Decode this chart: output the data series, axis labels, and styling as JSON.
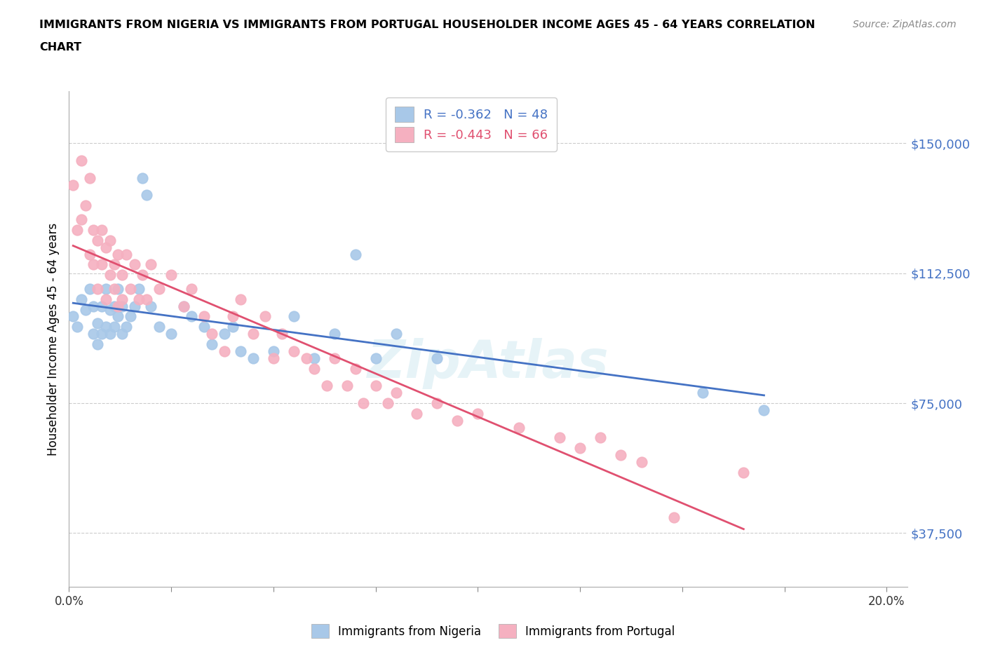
{
  "title_line1": "IMMIGRANTS FROM NIGERIA VS IMMIGRANTS FROM PORTUGAL HOUSEHOLDER INCOME AGES 45 - 64 YEARS CORRELATION",
  "title_line2": "CHART",
  "source": "Source: ZipAtlas.com",
  "ylabel": "Householder Income Ages 45 - 64 years",
  "xlim": [
    0.0,
    0.205
  ],
  "ylim": [
    22000,
    165000
  ],
  "yticks": [
    37500,
    75000,
    112500,
    150000
  ],
  "ytick_labels": [
    "$37,500",
    "$75,000",
    "$112,500",
    "$150,000"
  ],
  "xticks": [
    0.0,
    0.025,
    0.05,
    0.075,
    0.1,
    0.125,
    0.15,
    0.175,
    0.2
  ],
  "xtick_labels": [
    "0.0%",
    "",
    "",
    "",
    "",
    "",
    "",
    "",
    "20.0%"
  ],
  "nigeria_color": "#a8c8e8",
  "portugal_color": "#f5b0c0",
  "nigeria_line_color": "#4472c4",
  "portugal_line_color": "#e05070",
  "nigeria_R": -0.362,
  "nigeria_N": 48,
  "portugal_R": -0.443,
  "portugal_N": 66,
  "nigeria_x": [
    0.001,
    0.002,
    0.003,
    0.004,
    0.005,
    0.006,
    0.006,
    0.007,
    0.007,
    0.008,
    0.008,
    0.009,
    0.009,
    0.01,
    0.01,
    0.011,
    0.011,
    0.012,
    0.012,
    0.013,
    0.013,
    0.014,
    0.015,
    0.016,
    0.017,
    0.018,
    0.019,
    0.02,
    0.022,
    0.025,
    0.028,
    0.03,
    0.033,
    0.035,
    0.038,
    0.04,
    0.042,
    0.045,
    0.05,
    0.055,
    0.06,
    0.065,
    0.07,
    0.075,
    0.08,
    0.09,
    0.155,
    0.17
  ],
  "nigeria_y": [
    100000,
    97000,
    105000,
    102000,
    108000,
    95000,
    103000,
    92000,
    98000,
    95000,
    103000,
    97000,
    108000,
    102000,
    95000,
    103000,
    97000,
    100000,
    108000,
    95000,
    103000,
    97000,
    100000,
    103000,
    108000,
    140000,
    135000,
    103000,
    97000,
    95000,
    103000,
    100000,
    97000,
    92000,
    95000,
    97000,
    90000,
    88000,
    90000,
    100000,
    88000,
    95000,
    118000,
    88000,
    95000,
    88000,
    78000,
    73000
  ],
  "portugal_x": [
    0.001,
    0.002,
    0.003,
    0.003,
    0.004,
    0.005,
    0.005,
    0.006,
    0.006,
    0.007,
    0.007,
    0.008,
    0.008,
    0.009,
    0.009,
    0.01,
    0.01,
    0.011,
    0.011,
    0.012,
    0.012,
    0.013,
    0.013,
    0.014,
    0.015,
    0.016,
    0.017,
    0.018,
    0.019,
    0.02,
    0.022,
    0.025,
    0.028,
    0.03,
    0.033,
    0.035,
    0.038,
    0.04,
    0.042,
    0.045,
    0.048,
    0.05,
    0.052,
    0.055,
    0.058,
    0.06,
    0.063,
    0.065,
    0.068,
    0.07,
    0.072,
    0.075,
    0.078,
    0.08,
    0.085,
    0.09,
    0.095,
    0.1,
    0.11,
    0.12,
    0.125,
    0.13,
    0.135,
    0.14,
    0.148,
    0.165
  ],
  "portugal_y": [
    138000,
    125000,
    128000,
    145000,
    132000,
    140000,
    118000,
    125000,
    115000,
    122000,
    108000,
    125000,
    115000,
    120000,
    105000,
    112000,
    122000,
    115000,
    108000,
    118000,
    103000,
    112000,
    105000,
    118000,
    108000,
    115000,
    105000,
    112000,
    105000,
    115000,
    108000,
    112000,
    103000,
    108000,
    100000,
    95000,
    90000,
    100000,
    105000,
    95000,
    100000,
    88000,
    95000,
    90000,
    88000,
    85000,
    80000,
    88000,
    80000,
    85000,
    75000,
    80000,
    75000,
    78000,
    72000,
    75000,
    70000,
    72000,
    68000,
    65000,
    62000,
    65000,
    60000,
    58000,
    42000,
    55000
  ]
}
